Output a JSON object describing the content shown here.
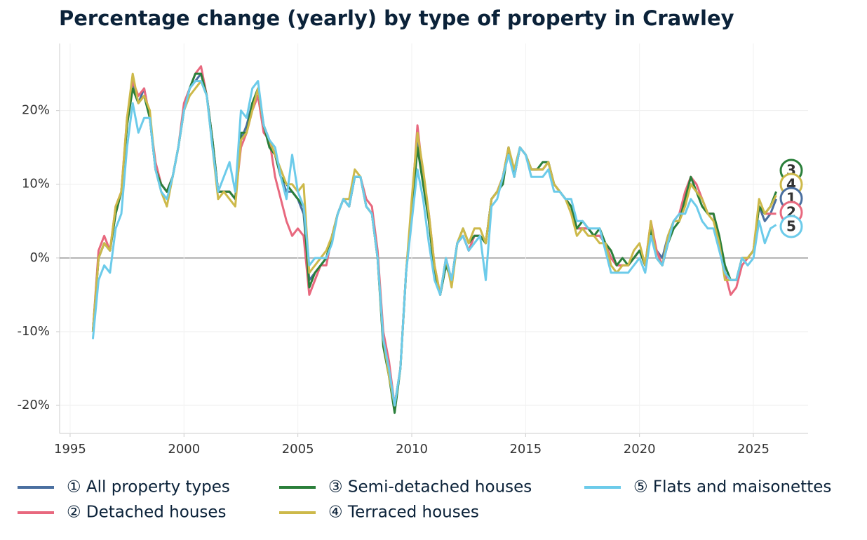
{
  "chart_data": {
    "type": "line",
    "title": "Percentage change (yearly) by type of property in Crawley",
    "x": [
      1996,
      1996.25,
      1996.5,
      1996.75,
      1997,
      1997.25,
      1997.5,
      1997.75,
      1998,
      1998.25,
      1998.5,
      1998.75,
      1999,
      1999.25,
      1999.5,
      1999.75,
      2000,
      2000.25,
      2000.5,
      2000.75,
      2001,
      2001.25,
      2001.5,
      2001.75,
      2002,
      2002.25,
      2002.5,
      2002.75,
      2003,
      2003.25,
      2003.5,
      2003.75,
      2004,
      2004.25,
      2004.5,
      2004.75,
      2005,
      2005.25,
      2005.5,
      2005.75,
      2006,
      2006.25,
      2006.5,
      2006.75,
      2007,
      2007.25,
      2007.5,
      2007.75,
      2008,
      2008.25,
      2008.5,
      2008.75,
      2009,
      2009.25,
      2009.5,
      2009.75,
      2010,
      2010.25,
      2010.5,
      2010.75,
      2011,
      2011.25,
      2011.5,
      2011.75,
      2012,
      2012.25,
      2012.5,
      2012.75,
      2013,
      2013.25,
      2013.5,
      2013.75,
      2014,
      2014.25,
      2014.5,
      2014.75,
      2015,
      2015.25,
      2015.5,
      2015.75,
      2016,
      2016.25,
      2016.5,
      2016.75,
      2017,
      2017.25,
      2017.5,
      2017.75,
      2018,
      2018.25,
      2018.5,
      2018.75,
      2019,
      2019.25,
      2019.5,
      2019.75,
      2020,
      2020.25,
      2020.5,
      2020.75,
      2021,
      2021.25,
      2021.5,
      2021.75,
      2022,
      2022.25,
      2022.5,
      2022.75,
      2023,
      2023.25,
      2023.5,
      2023.75,
      2024,
      2024.25,
      2024.5,
      2024.75,
      2025,
      2025.25,
      2025.5,
      2025.75,
      2026
    ],
    "series": [
      {
        "name": "① All property types",
        "end_label": "1",
        "color": "#4a6fa0",
        "values": [
          -10,
          0,
          2,
          1,
          6,
          9,
          18,
          24,
          21,
          23,
          19,
          12,
          10,
          9,
          11,
          15,
          20,
          23,
          24,
          25,
          22,
          16,
          9,
          9,
          9,
          8,
          16,
          18,
          21,
          22,
          18,
          16,
          14,
          11,
          9,
          9,
          8,
          6,
          -3,
          -2,
          -1,
          0,
          3,
          6,
          8,
          7,
          11,
          11,
          7,
          6,
          0,
          -11,
          -16,
          -20,
          -15,
          -2,
          7,
          16,
          11,
          5,
          -2,
          -5,
          -1,
          -3,
          2,
          3,
          1,
          3,
          3,
          2,
          8,
          9,
          11,
          15,
          11,
          15,
          14,
          12,
          12,
          12,
          13,
          10,
          9,
          8,
          7,
          4,
          4,
          4,
          3,
          3,
          2,
          0,
          -1,
          -1,
          -1,
          0,
          1,
          -1,
          4,
          1,
          0,
          3,
          5,
          5,
          8,
          10,
          9,
          8,
          6,
          6,
          2,
          -2,
          -3,
          -3,
          0,
          0,
          1,
          7,
          5,
          6,
          8
        ]
      },
      {
        "name": "② Detached houses",
        "end_label": "2",
        "color": "#e8687e",
        "values": [
          -10,
          1,
          3,
          1,
          7,
          9,
          19,
          24,
          22,
          23,
          19,
          13,
          10,
          9,
          11,
          15,
          21,
          23,
          25,
          26,
          22,
          16,
          9,
          9,
          9,
          8,
          15,
          17,
          20,
          22,
          17,
          16,
          11,
          8,
          5,
          3,
          4,
          3,
          -5,
          -3,
          -1,
          -1,
          3,
          6,
          8,
          7,
          11,
          11,
          8,
          7,
          1,
          -10,
          -14,
          -20,
          -15,
          -2,
          7,
          18,
          11,
          6,
          -1,
          -5,
          0,
          -3,
          2,
          3,
          1,
          3,
          3,
          2,
          8,
          9,
          11,
          15,
          11,
          15,
          14,
          12,
          12,
          12,
          13,
          10,
          9,
          8,
          7,
          4,
          4,
          4,
          3,
          3,
          2,
          0,
          -1,
          -1,
          -1,
          0,
          1,
          -1,
          5,
          1,
          -1,
          2,
          5,
          6,
          9,
          11,
          10,
          8,
          6,
          6,
          2,
          -2,
          -5,
          -4,
          -1,
          0,
          1,
          7,
          6,
          6,
          6
        ]
      },
      {
        "name": "③ Semi-detached houses",
        "end_label": "3",
        "color": "#2a7f3a",
        "values": [
          -10,
          0,
          2,
          1,
          6,
          9,
          18,
          23,
          21,
          22,
          19,
          12,
          10,
          9,
          11,
          15,
          20,
          23,
          25,
          25,
          22,
          16,
          9,
          9,
          9,
          8,
          17,
          17,
          21,
          23,
          18,
          15,
          14,
          11,
          10,
          9,
          8,
          7,
          -4,
          -2,
          -1,
          0,
          3,
          6,
          8,
          7,
          11,
          11,
          7,
          6,
          0,
          -12,
          -16,
          -21,
          -15,
          -2,
          6,
          15,
          10,
          5,
          -2,
          -5,
          -1,
          -3,
          2,
          4,
          2,
          3,
          3,
          2,
          8,
          9,
          10,
          15,
          11,
          15,
          14,
          12,
          12,
          13,
          13,
          10,
          9,
          8,
          7,
          4,
          5,
          4,
          3,
          4,
          2,
          1,
          -1,
          0,
          -1,
          0,
          1,
          -1,
          4,
          0,
          -1,
          2,
          4,
          5,
          8,
          11,
          9,
          7,
          6,
          6,
          3,
          -1,
          -3,
          -3,
          0,
          0,
          1,
          7,
          6,
          7,
          9
        ]
      },
      {
        "name": "④ Terraced houses",
        "end_label": "4",
        "color": "#cdb94a",
        "values": [
          -10,
          0,
          2,
          1,
          7,
          9,
          19,
          25,
          21,
          22,
          20,
          12,
          9,
          7,
          11,
          15,
          20,
          22,
          23,
          24,
          22,
          15,
          8,
          9,
          8,
          7,
          16,
          17,
          20,
          23,
          18,
          16,
          14,
          12,
          10,
          10,
          9,
          10,
          -2,
          -1,
          0,
          1,
          3,
          6,
          8,
          8,
          12,
          11,
          7,
          6,
          0,
          -11,
          -16,
          -20,
          -15,
          -2,
          8,
          17,
          12,
          6,
          -1,
          -5,
          0,
          -4,
          2,
          4,
          2,
          4,
          4,
          2,
          8,
          9,
          11,
          15,
          12,
          15,
          14,
          12,
          12,
          12,
          13,
          10,
          9,
          8,
          6,
          3,
          4,
          3,
          3,
          2,
          2,
          -1,
          -2,
          -1,
          -1,
          1,
          2,
          -1,
          5,
          0,
          -1,
          3,
          5,
          5,
          7,
          10,
          9,
          8,
          6,
          5,
          2,
          -3,
          -3,
          -3,
          0,
          0,
          1,
          8,
          6,
          7,
          8.5
        ]
      },
      {
        "name": "⑤ Flats and maisonettes",
        "end_label": "5",
        "color": "#6ccbea",
        "values": [
          -11,
          -3,
          -1,
          -2,
          4,
          6,
          15,
          21,
          17,
          19,
          19,
          12,
          9,
          8,
          11,
          15,
          20,
          23,
          24,
          24,
          22,
          15,
          9,
          11,
          13,
          9,
          20,
          19,
          23,
          24,
          18,
          16,
          15,
          11,
          8,
          14,
          9,
          7,
          -1,
          0,
          0,
          0,
          2,
          6,
          8,
          7,
          11,
          11,
          7,
          6,
          0,
          -11,
          -15,
          -20,
          -15,
          -2,
          5,
          12,
          8,
          2,
          -3,
          -5,
          0,
          -3,
          2,
          3,
          1,
          2,
          3,
          -3,
          7,
          8,
          11,
          14,
          11,
          15,
          14,
          11,
          11,
          11,
          12,
          9,
          9,
          8,
          8,
          5,
          5,
          4,
          4,
          4,
          1,
          -2,
          -2,
          -2,
          -2,
          -1,
          0,
          -2,
          3,
          0,
          -1,
          2,
          5,
          6,
          6,
          8,
          7,
          5,
          4,
          4,
          1,
          -2,
          -3,
          -3,
          0,
          -1,
          0,
          5,
          2,
          4,
          4.5
        ]
      }
    ],
    "xlim": [
      1994.54,
      2027.4
    ],
    "ylim": [
      -23.8,
      29.1
    ],
    "xticks": [
      1995,
      2000,
      2005,
      2010,
      2015,
      2020,
      2025
    ],
    "yticks": [
      {
        "value": -20,
        "label": "-20%"
      },
      {
        "value": -10,
        "label": "-10%"
      },
      {
        "value": 0,
        "label": "0%"
      },
      {
        "value": 10,
        "label": "10%"
      },
      {
        "value": 20,
        "label": "20%"
      }
    ],
    "grid": true,
    "legend_position": "bottom"
  }
}
